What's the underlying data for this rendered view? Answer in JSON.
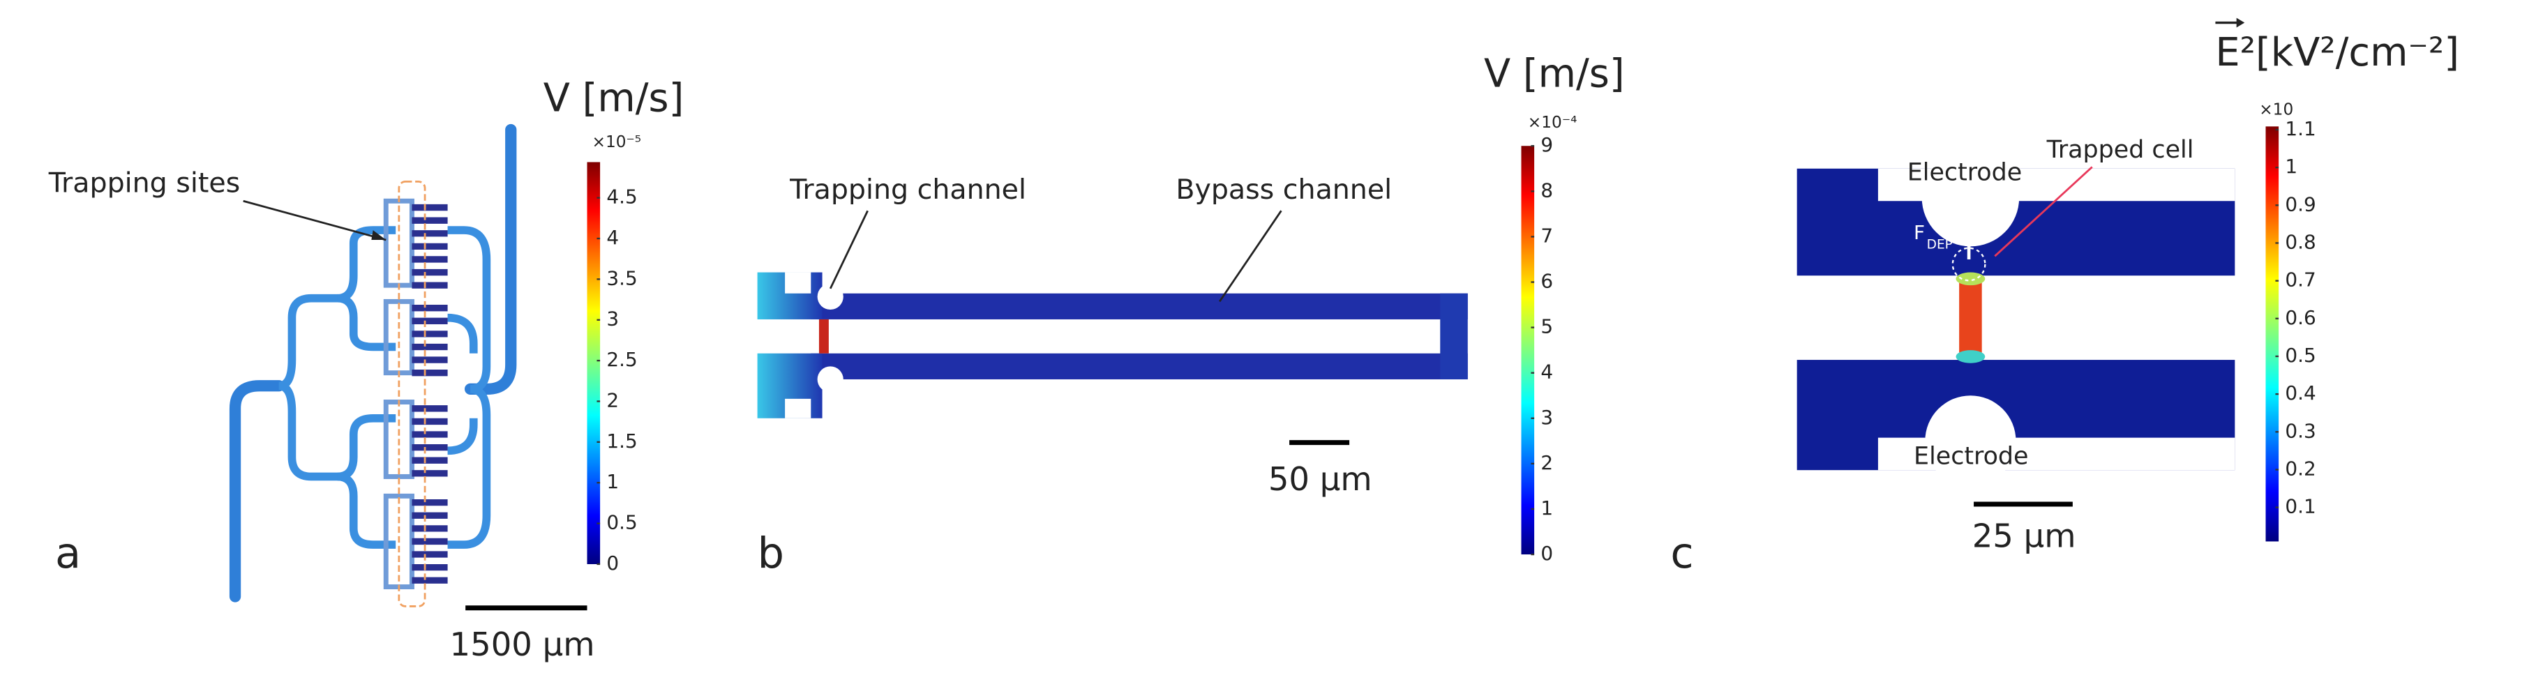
{
  "panels": [
    {
      "label": "a",
      "colorbar": {
        "title": "V [m/s]",
        "exponent": "×10⁻⁵",
        "ticks": [
          "4.5",
          "4",
          "3.5",
          "3",
          "2.5",
          "2",
          "1.5",
          "1",
          "0.5",
          "0"
        ]
      },
      "annotations": [
        "Trapping sites"
      ],
      "scale_bar": "1500 µm"
    },
    {
      "label": "b",
      "colorbar": {
        "title": "V [m/s]",
        "exponent": "×10⁻⁴",
        "ticks": [
          "9",
          "8",
          "7",
          "6",
          "5",
          "4",
          "3",
          "2",
          "1",
          "0"
        ]
      },
      "annotations": [
        "Trapping channel",
        "Bypass channel"
      ],
      "scale_bar": "50 µm"
    },
    {
      "label": "c",
      "colorbar": {
        "title": "E²[kV²/cm⁻²]",
        "exponent": "×10",
        "ticks": [
          "1.1",
          "1",
          "0.9",
          "0.8",
          "0.7",
          "0.6",
          "0.5",
          "0.4",
          "0.3",
          "0.2",
          "0.1"
        ]
      },
      "annotations": [
        "Electrode",
        "Trapped cell",
        "Electrode",
        "F",
        "DEP"
      ],
      "scale_bar": "25 µm"
    }
  ]
}
